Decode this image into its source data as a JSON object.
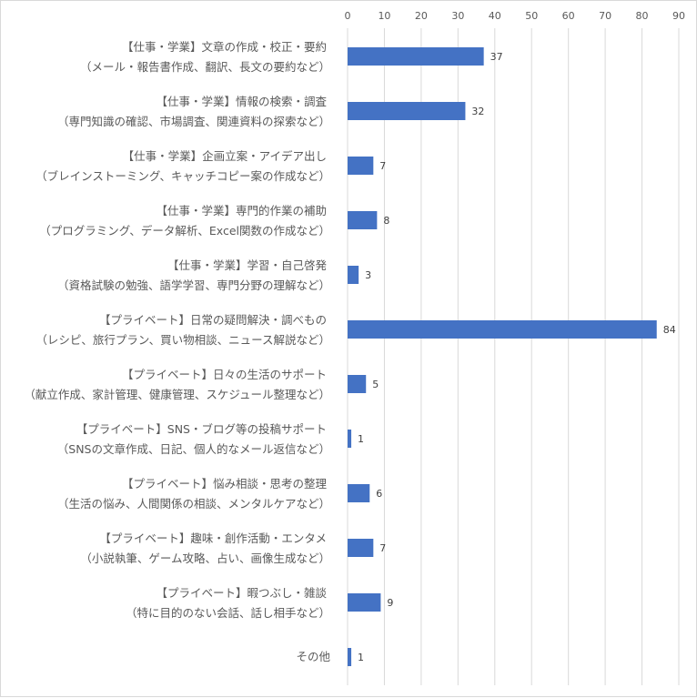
{
  "chart_data": {
    "type": "bar",
    "orientation": "horizontal",
    "categories": [
      [
        "【仕事・学業】文章の作成・校正・要約",
        "（メール・報告書作成、翻訳、長文の要約など）"
      ],
      [
        "【仕事・学業】情報の検索・調査",
        "（専門知識の確認、市場調査、関連資料の探索など）"
      ],
      [
        "【仕事・学業】企画立案・アイデア出し",
        "（ブレインストーミング、キャッチコピー案の作成など）"
      ],
      [
        "【仕事・学業】専門的作業の補助",
        "（プログラミング、データ解析、Excel関数の作成など）"
      ],
      [
        "【仕事・学業】学習・自己啓発",
        "（資格試験の勉強、語学学習、専門分野の理解など）"
      ],
      [
        "【プライベート】日常の疑問解決・調べもの",
        "（レシピ、旅行プラン、買い物相談、ニュース解説など）"
      ],
      [
        "【プライベート】日々の生活のサポート",
        "（献立作成、家計管理、健康管理、スケジュール整理など）"
      ],
      [
        "【プライベート】SNS・ブログ等の投稿サポート",
        "（SNSの文章作成、日記、個人的なメール返信など）"
      ],
      [
        "【プライベート】悩み相談・思考の整理",
        "（生活の悩み、人間関係の相談、メンタルケアなど）"
      ],
      [
        "【プライベート】趣味・創作活動・エンタメ",
        "（小説執筆、ゲーム攻略、占い、画像生成など）"
      ],
      [
        "【プライベート】暇つぶし・雑談",
        "（特に目的のない会話、話し相手など）"
      ],
      [
        "その他"
      ]
    ],
    "values": [
      37,
      32,
      7,
      8,
      3,
      84,
      5,
      1,
      6,
      7,
      9,
      1
    ],
    "data_labels": [
      "37",
      "32",
      "7",
      "8",
      "3",
      "84",
      "5",
      "1",
      "6",
      "7",
      "9",
      "1"
    ],
    "xlim": [
      0,
      90
    ],
    "x_ticks": [
      "0",
      "10",
      "20",
      "30",
      "40",
      "50",
      "60",
      "70",
      "80",
      "90"
    ],
    "x_axis_position": "top",
    "grid": true,
    "legend": "none",
    "bar_color": "#4472C4",
    "grid_color": "#d9d9d9"
  }
}
